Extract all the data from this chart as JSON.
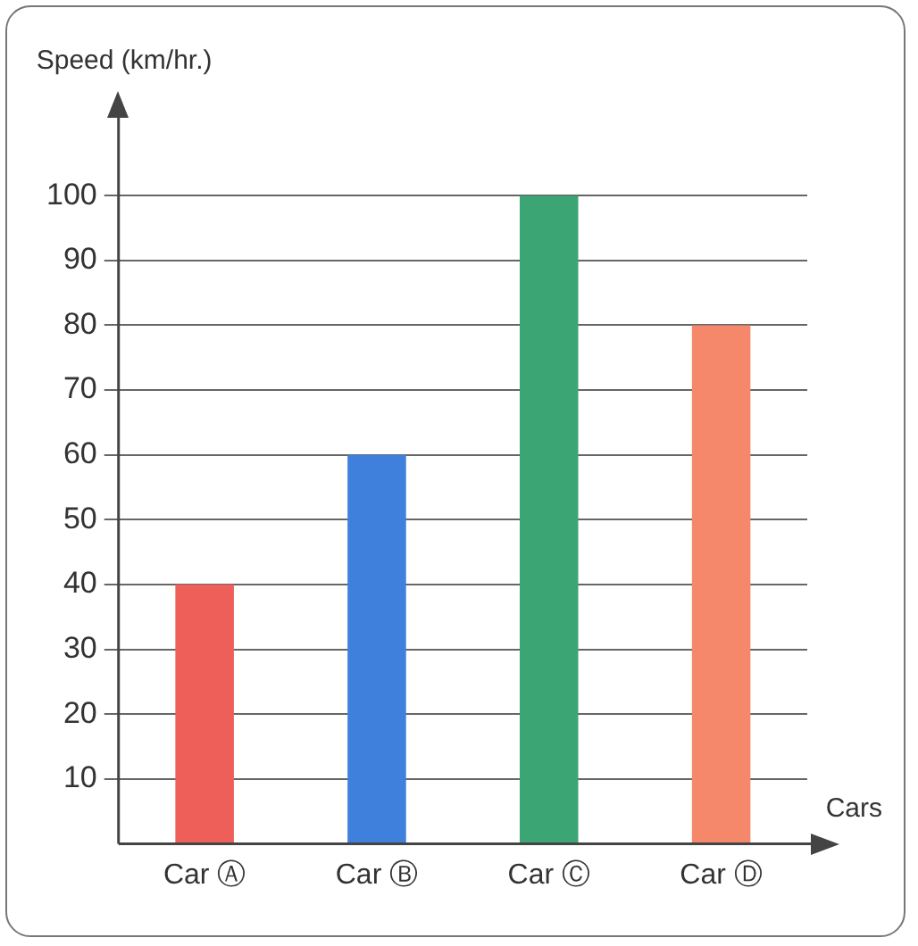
{
  "chart_data": {
    "type": "bar",
    "xlabel": "Cars",
    "ylabel": "Speed (km/hr.)",
    "categories": [
      "Car Ⓐ",
      "Car Ⓑ",
      "Car Ⓒ",
      "Car Ⓓ"
    ],
    "values": [
      40,
      60,
      100,
      80
    ],
    "colors": [
      "#ef5f5a",
      "#3f80dd",
      "#3ba673",
      "#f5886b"
    ],
    "ylim": [
      0,
      112
    ],
    "yticks": [
      10,
      20,
      30,
      40,
      50,
      60,
      70,
      80,
      90,
      100
    ],
    "grid": "y"
  }
}
